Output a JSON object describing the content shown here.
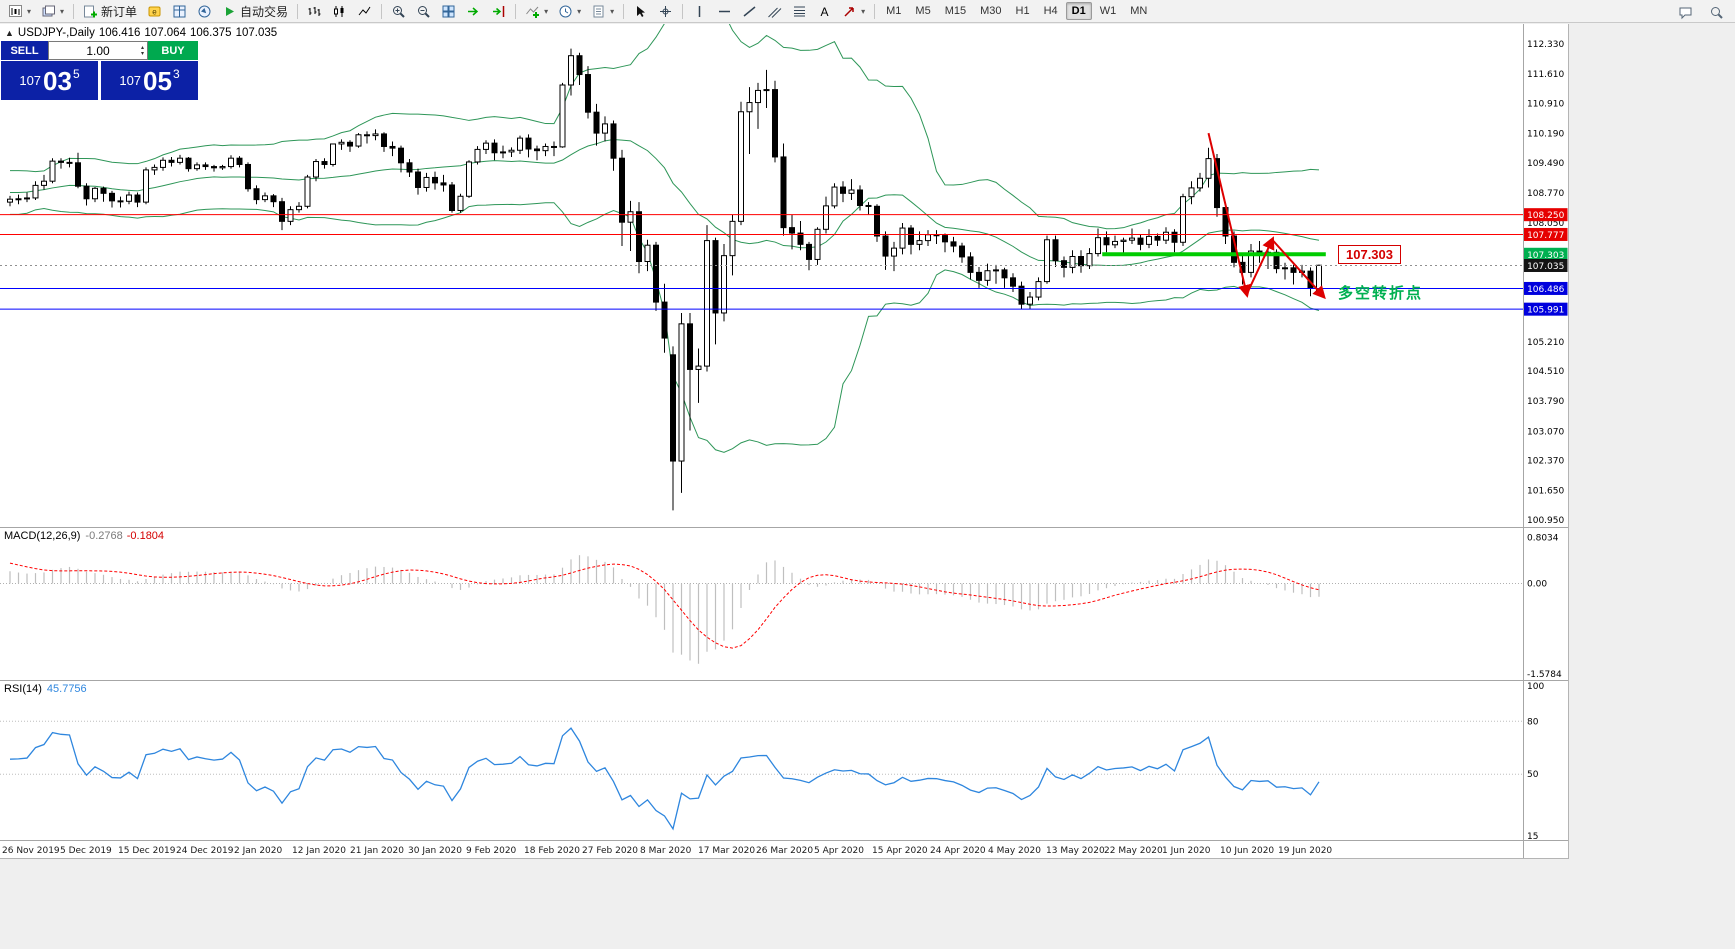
{
  "toolbar": {
    "items": [
      {
        "name": "new-chart-button",
        "icon": "new-chart-icon",
        "caret": true
      },
      {
        "name": "profiles-button",
        "icon": "profiles-icon",
        "caret": true
      },
      {
        "sep": true
      },
      {
        "name": "new-order-button",
        "icon": "new-order-icon",
        "label": "新订单"
      },
      {
        "name": "metaeditor-button",
        "icon": "metaeditor-icon"
      },
      {
        "name": "market-watch-button",
        "icon": "market-watch-icon"
      },
      {
        "name": "navigator-button",
        "icon": "navigator-icon"
      },
      {
        "name": "auto-trading-button",
        "icon": "auto-trading-icon",
        "label": "自动交易"
      },
      {
        "sep": true
      },
      {
        "name": "bar-chart-button",
        "icon": "bar-chart-icon"
      },
      {
        "name": "candlestick-chart-button",
        "icon": "candlestick-chart-icon"
      },
      {
        "name": "line-chart-button",
        "icon": "line-chart-icon"
      },
      {
        "sep": true
      },
      {
        "name": "zoom-in-button",
        "icon": "zoom-in-icon"
      },
      {
        "name": "zoom-out-button",
        "icon": "zoom-out-icon"
      },
      {
        "name": "tile-windows-button",
        "icon": "tile-windows-icon"
      },
      {
        "name": "auto-scroll-button",
        "icon": "auto-scroll-icon"
      },
      {
        "name": "chart-shift-button",
        "icon": "chart-shift-icon"
      },
      {
        "sep": true
      },
      {
        "name": "indicators-button",
        "icon": "indicators-icon",
        "caret": true
      },
      {
        "name": "periods-button",
        "icon": "periods-icon",
        "caret": true
      },
      {
        "name": "templates-button",
        "icon": "templates-icon",
        "caret": true
      },
      {
        "sep": true
      },
      {
        "name": "cursor-button",
        "icon": "cursor-icon"
      },
      {
        "name": "crosshair-button",
        "icon": "crosshair-icon"
      },
      {
        "sep": true
      },
      {
        "name": "vertical-line-button",
        "icon": "vertical-line-icon"
      },
      {
        "name": "horizontal-line-button",
        "icon": "horizontal-line-icon"
      },
      {
        "name": "trendline-button",
        "icon": "trendline-icon"
      },
      {
        "name": "channel-button",
        "icon": "channel-icon"
      },
      {
        "name": "fibonacci-button",
        "icon": "fibonacci-icon"
      },
      {
        "name": "text-button",
        "icon": "text-icon"
      },
      {
        "name": "arrows-button",
        "icon": "arrows-icon",
        "caret": true
      },
      {
        "sep": true
      }
    ],
    "right_items": [
      {
        "name": "chat-button",
        "icon": "chat-icon"
      },
      {
        "name": "search-button",
        "icon": "search-icon"
      }
    ]
  },
  "timeframes": {
    "items": [
      "M1",
      "M5",
      "M15",
      "M30",
      "H1",
      "H4",
      "D1",
      "W1",
      "MN"
    ],
    "active": "D1"
  },
  "info_line": {
    "collapse": "▲",
    "symbol_period": "USDJPY-,Daily",
    "open": "106.416",
    "high": "107.064",
    "low": "106.375",
    "close": "107.035"
  },
  "oct": {
    "sell_label": "SELL",
    "buy_label": "BUY",
    "volume": "1.00",
    "sell_price": {
      "prefix": "107",
      "big": "03",
      "sup": "5"
    },
    "buy_price": {
      "prefix": "107",
      "big": "05",
      "sup": "3"
    }
  },
  "panels": {
    "macd": {
      "name": "MACD(12,26,9)",
      "main_value": "-0.2768",
      "signal_value": "-0.1804",
      "scale_labels": [
        "0.8034",
        "0.00",
        "-1.5784"
      ],
      "main_color": "#bfbfbf",
      "signal_color": "#ff0000"
    },
    "rsi": {
      "name": "RSI(14)",
      "value": "45.7756",
      "scale_labels": [
        "100",
        "80",
        "50",
        "15"
      ],
      "levels": [
        80,
        50
      ],
      "color": "#2e86de"
    }
  },
  "price_scale": {
    "ticks": [
      "112.330",
      "111.610",
      "110.910",
      "110.190",
      "109.490",
      "108.770",
      "108.050",
      "105.210",
      "104.510",
      "103.790",
      "103.070",
      "102.370",
      "101.650",
      "100.950"
    ],
    "tags": [
      {
        "text": "108.250",
        "bg": "#e60000"
      },
      {
        "text": "107.777",
        "bg": "#e60000"
      },
      {
        "text": "107.303",
        "bg": "#00b050"
      },
      {
        "text": "107.035",
        "bg": "#141414"
      },
      {
        "text": "106.486",
        "bg": "#0000dd"
      },
      {
        "text": "105.991",
        "bg": "#0000dd"
      }
    ]
  },
  "hlines": [
    {
      "price": 108.25,
      "color": "#ff0000"
    },
    {
      "price": 107.777,
      "color": "#ff0000"
    },
    {
      "price": 106.486,
      "color": "#0000ff"
    },
    {
      "price": 105.991,
      "color": "#0000ff"
    }
  ],
  "bid_line": {
    "price": 107.035,
    "color": "#909090"
  },
  "annotations": {
    "pivot_line": {
      "price": 107.303,
      "from_bar": 128.5,
      "to_bar": 154.8,
      "color": "#00cc00",
      "width": 4
    },
    "pivot_label": {
      "text": "107.303",
      "color": "#d40000"
    },
    "pivot_note": {
      "text": "多空转折点",
      "color": "#00b050"
    },
    "trend_arrow": {
      "color": "#dd0000",
      "points": [
        [
          141,
          110.2
        ],
        [
          145.5,
          106.35
        ],
        [
          148.5,
          107.65
        ],
        [
          154.5,
          106.3
        ]
      ]
    }
  },
  "chart_data": {
    "type": "candlestick",
    "symbol": "USDJPY-",
    "period": "Daily",
    "ylim": [
      100.95,
      112.71
    ],
    "x_tick_labels": [
      "26 Nov 2019",
      "5 Dec 2019",
      "15 Dec 2019",
      "24 Dec 2019",
      "2 Jan 2020",
      "12 Jan 2020",
      "21 Jan 2020",
      "30 Jan 2020",
      "9 Feb 2020",
      "18 Feb 2020",
      "27 Feb 2020",
      "8 Mar 2020",
      "17 Mar 2020",
      "26 Mar 2020",
      "5 Apr 2020",
      "15 Apr 2020",
      "24 Apr 2020",
      "4 May 2020",
      "13 May 2020",
      "22 May 2020",
      "1 Jun 2020",
      "10 Jun 2020",
      "19 Jun 2020"
    ],
    "overlays": [
      {
        "name": "Bollinger Bands",
        "period": 20,
        "deviation": 2,
        "color": "#2e9658"
      }
    ],
    "sub_charts": [
      {
        "name": "MACD",
        "params": [
          12,
          26,
          9
        ],
        "style": "histogram+signal",
        "scale": [
          0.8034,
          0,
          -1.5784
        ]
      },
      {
        "name": "RSI",
        "params": [
          14
        ],
        "style": "line",
        "scale": [
          100,
          80,
          50,
          15
        ]
      }
    ],
    "history_closes": [
      106.95,
      107.15,
      107.3,
      107.45,
      107.3,
      107.55,
      107.8,
      108.1,
      108.3,
      108.45,
      108.6,
      108.65,
      108.45,
      108.3,
      108.55,
      108.7,
      108.85,
      108.9,
      109.0,
      108.9,
      108.98,
      109.28,
      109.26,
      109.05,
      109.0,
      108.82,
      108.43,
      108.68,
      108.65,
      108.55
    ],
    "candles": [
      [
        108.55,
        108.7,
        108.45,
        108.62
      ],
      [
        108.62,
        108.73,
        108.5,
        108.63
      ],
      [
        108.63,
        108.78,
        108.55,
        108.65
      ],
      [
        108.65,
        109.05,
        108.6,
        108.95
      ],
      [
        108.95,
        109.2,
        108.85,
        109.05
      ],
      [
        109.05,
        109.6,
        109.0,
        109.53
      ],
      [
        109.53,
        109.6,
        109.35,
        109.5
      ],
      [
        109.5,
        109.61,
        109.38,
        109.49
      ],
      [
        109.49,
        109.73,
        108.88,
        108.93
      ],
      [
        108.93,
        109.0,
        108.47,
        108.63
      ],
      [
        108.63,
        108.91,
        108.55,
        108.88
      ],
      [
        108.88,
        108.92,
        108.56,
        108.76
      ],
      [
        108.76,
        108.82,
        108.42,
        108.58
      ],
      [
        108.58,
        108.68,
        108.42,
        108.57
      ],
      [
        108.57,
        108.8,
        108.5,
        108.72
      ],
      [
        108.72,
        108.78,
        108.43,
        108.55
      ],
      [
        108.55,
        109.38,
        108.5,
        109.32
      ],
      [
        109.32,
        109.45,
        109.2,
        109.38
      ],
      [
        109.38,
        109.62,
        109.3,
        109.55
      ],
      [
        109.55,
        109.63,
        109.4,
        109.5
      ],
      [
        109.5,
        109.68,
        109.45,
        109.6
      ],
      [
        109.6,
        109.63,
        109.28,
        109.35
      ],
      [
        109.35,
        109.5,
        109.3,
        109.44
      ],
      [
        109.44,
        109.5,
        109.32,
        109.4
      ],
      [
        109.4,
        109.44,
        109.28,
        109.37
      ],
      [
        109.37,
        109.44,
        109.32,
        109.4
      ],
      [
        109.4,
        109.67,
        109.35,
        109.6
      ],
      [
        109.6,
        109.65,
        109.38,
        109.45
      ],
      [
        109.45,
        109.5,
        108.8,
        108.87
      ],
      [
        108.87,
        108.95,
        108.5,
        108.61
      ],
      [
        108.61,
        108.78,
        108.55,
        108.7
      ],
      [
        108.7,
        108.74,
        108.43,
        108.56
      ],
      [
        108.56,
        108.65,
        107.88,
        108.09
      ],
      [
        108.09,
        108.45,
        108.0,
        108.37
      ],
      [
        108.37,
        108.55,
        108.3,
        108.45
      ],
      [
        108.45,
        109.2,
        108.4,
        109.15
      ],
      [
        109.15,
        109.58,
        109.05,
        109.52
      ],
      [
        109.52,
        109.6,
        109.35,
        109.45
      ],
      [
        109.45,
        109.95,
        109.4,
        109.94
      ],
      [
        109.94,
        110.05,
        109.8,
        109.98
      ],
      [
        109.98,
        110.03,
        109.75,
        109.89
      ],
      [
        109.89,
        110.2,
        109.85,
        110.16
      ],
      [
        110.16,
        110.24,
        109.95,
        110.14
      ],
      [
        110.14,
        110.29,
        110.03,
        110.18
      ],
      [
        110.18,
        110.22,
        109.75,
        109.88
      ],
      [
        109.88,
        110.0,
        109.65,
        109.84
      ],
      [
        109.84,
        109.9,
        109.26,
        109.49
      ],
      [
        109.49,
        109.58,
        109.15,
        109.27
      ],
      [
        109.27,
        109.35,
        108.73,
        108.9
      ],
      [
        108.9,
        109.25,
        108.8,
        109.14
      ],
      [
        109.14,
        109.28,
        108.85,
        109.01
      ],
      [
        109.01,
        109.2,
        108.8,
        108.96
      ],
      [
        108.96,
        109.03,
        108.3,
        108.35
      ],
      [
        108.35,
        108.75,
        108.3,
        108.69
      ],
      [
        108.69,
        109.55,
        108.65,
        109.51
      ],
      [
        109.51,
        109.89,
        109.45,
        109.81
      ],
      [
        109.81,
        110.03,
        109.7,
        109.96
      ],
      [
        109.96,
        110.05,
        109.55,
        109.73
      ],
      [
        109.73,
        109.9,
        109.6,
        109.75
      ],
      [
        109.75,
        109.86,
        109.63,
        109.79
      ],
      [
        109.79,
        110.14,
        109.7,
        110.08
      ],
      [
        110.08,
        110.17,
        109.62,
        109.82
      ],
      [
        109.82,
        109.9,
        109.55,
        109.78
      ],
      [
        109.78,
        109.95,
        109.65,
        109.88
      ],
      [
        109.88,
        110.0,
        109.65,
        109.87
      ],
      [
        109.87,
        111.4,
        109.85,
        111.35
      ],
      [
        111.35,
        112.22,
        111.1,
        112.05
      ],
      [
        112.05,
        112.12,
        111.35,
        111.6
      ],
      [
        111.6,
        111.8,
        110.55,
        110.7
      ],
      [
        110.7,
        110.9,
        109.9,
        110.2
      ],
      [
        110.2,
        110.6,
        110.0,
        110.42
      ],
      [
        110.42,
        110.5,
        109.3,
        109.6
      ],
      [
        109.6,
        109.8,
        107.5,
        108.07
      ],
      [
        108.07,
        108.58,
        107.38,
        108.32
      ],
      [
        108.32,
        108.55,
        106.85,
        107.13
      ],
      [
        107.13,
        107.65,
        106.9,
        107.52
      ],
      [
        107.52,
        107.6,
        105.95,
        106.16
      ],
      [
        106.16,
        106.6,
        104.95,
        105.3
      ],
      [
        104.9,
        105.1,
        101.18,
        102.36
      ],
      [
        102.36,
        105.9,
        101.6,
        105.64
      ],
      [
        105.64,
        105.9,
        103.09,
        104.55
      ],
      [
        104.55,
        105.05,
        103.75,
        104.63
      ],
      [
        104.63,
        108.0,
        104.5,
        107.63
      ],
      [
        107.63,
        107.7,
        105.15,
        105.9
      ],
      [
        105.9,
        107.55,
        105.7,
        107.27
      ],
      [
        107.27,
        108.25,
        106.8,
        108.09
      ],
      [
        108.09,
        110.95,
        108.0,
        110.71
      ],
      [
        110.71,
        111.3,
        109.7,
        110.93
      ],
      [
        110.93,
        111.4,
        110.3,
        111.22
      ],
      [
        111.22,
        111.71,
        110.8,
        111.24
      ],
      [
        111.24,
        111.45,
        109.5,
        109.63
      ],
      [
        109.63,
        109.95,
        107.75,
        107.94
      ],
      [
        107.94,
        108.25,
        107.42,
        107.81
      ],
      [
        107.81,
        108.1,
        107.4,
        107.54
      ],
      [
        107.54,
        107.6,
        106.92,
        107.18
      ],
      [
        107.18,
        107.95,
        107.05,
        107.9
      ],
      [
        107.9,
        108.68,
        107.8,
        108.46
      ],
      [
        108.46,
        109.0,
        108.4,
        108.91
      ],
      [
        108.91,
        109.05,
        108.55,
        108.76
      ],
      [
        108.76,
        109.1,
        108.6,
        108.84
      ],
      [
        108.84,
        108.95,
        108.35,
        108.47
      ],
      [
        108.47,
        108.55,
        108.25,
        108.45
      ],
      [
        108.45,
        108.5,
        107.6,
        107.74
      ],
      [
        107.74,
        107.85,
        106.93,
        107.26
      ],
      [
        107.26,
        107.6,
        106.9,
        107.45
      ],
      [
        107.45,
        108.05,
        107.3,
        107.93
      ],
      [
        107.93,
        108.0,
        107.3,
        107.54
      ],
      [
        107.54,
        107.85,
        107.4,
        107.63
      ],
      [
        107.63,
        107.88,
        107.5,
        107.77
      ],
      [
        107.77,
        107.88,
        107.55,
        107.75
      ],
      [
        107.75,
        107.8,
        107.35,
        107.6
      ],
      [
        107.6,
        107.72,
        107.35,
        107.5
      ],
      [
        107.5,
        107.58,
        107.1,
        107.24
      ],
      [
        107.24,
        107.35,
        106.7,
        106.87
      ],
      [
        106.87,
        107.0,
        106.5,
        106.68
      ],
      [
        106.68,
        107.08,
        106.55,
        106.91
      ],
      [
        106.91,
        107.05,
        106.6,
        106.93
      ],
      [
        106.93,
        106.98,
        106.5,
        106.74
      ],
      [
        106.74,
        106.85,
        106.4,
        106.54
      ],
      [
        106.54,
        106.65,
        105.99,
        106.11
      ],
      [
        106.11,
        106.4,
        105.99,
        106.28
      ],
      [
        106.28,
        106.75,
        106.2,
        106.65
      ],
      [
        106.65,
        107.75,
        106.6,
        107.65
      ],
      [
        107.65,
        107.75,
        107.0,
        107.15
      ],
      [
        107.15,
        107.25,
        106.75,
        106.99
      ],
      [
        106.99,
        107.4,
        106.85,
        107.25
      ],
      [
        107.25,
        107.4,
        106.86,
        107.03
      ],
      [
        107.03,
        107.45,
        106.95,
        107.32
      ],
      [
        107.32,
        107.92,
        107.25,
        107.7
      ],
      [
        107.7,
        107.85,
        107.35,
        107.53
      ],
      [
        107.53,
        107.75,
        107.45,
        107.61
      ],
      [
        107.61,
        107.7,
        107.3,
        107.64
      ],
      [
        107.64,
        107.92,
        107.55,
        107.69
      ],
      [
        107.69,
        107.78,
        107.4,
        107.54
      ],
      [
        107.54,
        107.9,
        107.45,
        107.73
      ],
      [
        107.73,
        107.8,
        107.5,
        107.64
      ],
      [
        107.64,
        107.95,
        107.55,
        107.83
      ],
      [
        107.83,
        107.9,
        107.35,
        107.59
      ],
      [
        107.59,
        108.75,
        107.5,
        108.68
      ],
      [
        108.68,
        109.05,
        108.5,
        108.89
      ],
      [
        108.89,
        109.25,
        108.8,
        109.12
      ],
      [
        109.12,
        109.85,
        108.9,
        109.59
      ],
      [
        109.59,
        109.7,
        108.2,
        108.42
      ],
      [
        108.42,
        108.55,
        107.55,
        107.74
      ],
      [
        107.74,
        107.85,
        106.99,
        107.11
      ],
      [
        107.11,
        107.3,
        106.58,
        106.87
      ],
      [
        106.87,
        107.55,
        106.75,
        107.38
      ],
      [
        107.38,
        107.62,
        107.1,
        107.32
      ],
      [
        107.32,
        107.45,
        106.95,
        107.35
      ],
      [
        107.35,
        107.42,
        106.85,
        106.96
      ],
      [
        106.96,
        107.1,
        106.7,
        106.98
      ],
      [
        106.98,
        107.05,
        106.58,
        106.87
      ],
      [
        106.87,
        107.05,
        106.75,
        106.9
      ],
      [
        106.9,
        106.99,
        106.3,
        106.5
      ],
      [
        106.42,
        107.06,
        106.38,
        107.04
      ]
    ]
  }
}
